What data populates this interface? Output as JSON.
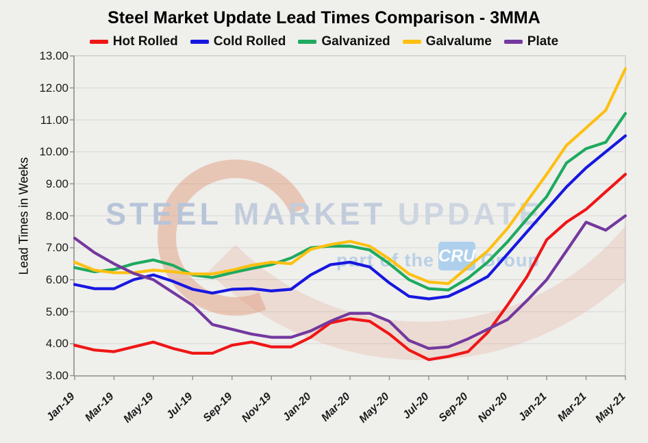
{
  "title": "Steel Market Update Lead Times Comparison - 3MMA",
  "y_axis": {
    "label": "Lead Times in Weeks",
    "tick_labels": [
      "13.00",
      "12.00",
      "11.00",
      "10.00",
      "9.00",
      "8.00",
      "7.00",
      "6.00",
      "5.00",
      "4.00",
      "3.00"
    ],
    "min": 3,
    "max": 13
  },
  "x_axis": {
    "tick_labels": [
      "Jan-19",
      "Mar-19",
      "May-19",
      "Jul-19",
      "Sep-19",
      "Nov-19",
      "Jan-20",
      "Mar-20",
      "May-20",
      "Jul-20",
      "Sep-20",
      "Nov-20",
      "Jan-21",
      "Mar-21",
      "May-21"
    ]
  },
  "watermark": {
    "steel": "STEEL",
    "market": "MARKET",
    "update": "UPDATE",
    "part_of_the": "part of the",
    "cru": "CRU",
    "group": "Group"
  },
  "colors": {
    "background": "#efefec",
    "gridline": "#d6d6d6",
    "plot_border": "#c6c6c6",
    "axis": "#8f8f8f"
  },
  "chart_data": {
    "type": "line",
    "title": "Steel Market Update Lead Times Comparison - 3MMA",
    "xlabel": "",
    "ylabel": "Lead Times in Weeks",
    "ylim": [
      3,
      13
    ],
    "ytick_step": 1,
    "grid": true,
    "legend_position": "top",
    "x_tick_every": 2,
    "x": [
      "Jan-19",
      "Feb-19",
      "Mar-19",
      "Apr-19",
      "May-19",
      "Jun-19",
      "Jul-19",
      "Aug-19",
      "Sep-19",
      "Oct-19",
      "Nov-19",
      "Dec-19",
      "Jan-20",
      "Feb-20",
      "Mar-20",
      "Apr-20",
      "May-20",
      "Jun-20",
      "Jul-20",
      "Aug-20",
      "Sep-20",
      "Oct-20",
      "Nov-20",
      "Dec-20",
      "Jan-21",
      "Feb-21",
      "Mar-21",
      "Apr-21",
      "May-21"
    ],
    "series": [
      {
        "name": "Hot Rolled",
        "color": "#ef1616",
        "values": [
          3.95,
          3.8,
          3.75,
          3.9,
          4.05,
          3.85,
          3.7,
          3.7,
          3.95,
          4.05,
          3.9,
          3.9,
          4.2,
          4.65,
          4.78,
          4.7,
          4.3,
          3.8,
          3.5,
          3.6,
          3.75,
          4.35,
          5.2,
          6.1,
          7.25,
          7.8,
          8.2,
          8.75,
          9.3
        ]
      },
      {
        "name": "Cold Rolled",
        "color": "#1717e0",
        "values": [
          5.85,
          5.72,
          5.72,
          6.0,
          6.15,
          5.95,
          5.7,
          5.58,
          5.7,
          5.72,
          5.65,
          5.7,
          6.15,
          6.47,
          6.55,
          6.4,
          5.9,
          5.48,
          5.4,
          5.48,
          5.77,
          6.1,
          6.8,
          7.5,
          8.2,
          8.9,
          9.5,
          10.0,
          10.5
        ]
      },
      {
        "name": "Galvanized",
        "color": "#1faa5f",
        "values": [
          6.38,
          6.25,
          6.32,
          6.5,
          6.62,
          6.45,
          6.15,
          6.07,
          6.22,
          6.35,
          6.47,
          6.68,
          7.0,
          7.05,
          7.05,
          6.93,
          6.5,
          6.0,
          5.72,
          5.68,
          6.05,
          6.55,
          7.18,
          7.9,
          8.6,
          9.65,
          10.1,
          10.3,
          11.2
        ]
      },
      {
        "name": "Galvalume",
        "color": "#fdc011",
        "values": [
          6.55,
          6.3,
          6.22,
          6.22,
          6.3,
          6.25,
          6.18,
          6.18,
          6.3,
          6.45,
          6.55,
          6.5,
          6.95,
          7.1,
          7.2,
          7.05,
          6.65,
          6.18,
          5.93,
          5.88,
          6.4,
          6.9,
          7.6,
          8.45,
          9.3,
          10.2,
          10.75,
          11.3,
          12.6
        ]
      },
      {
        "name": "Plate",
        "color": "#73399e",
        "values": [
          7.3,
          6.85,
          6.5,
          6.2,
          6.0,
          5.6,
          5.2,
          4.6,
          4.45,
          4.3,
          4.2,
          4.2,
          4.4,
          4.7,
          4.95,
          4.95,
          4.7,
          4.1,
          3.85,
          3.9,
          4.15,
          4.45,
          4.75,
          5.35,
          6.0,
          6.9,
          7.8,
          7.55,
          8.0
        ]
      }
    ]
  }
}
